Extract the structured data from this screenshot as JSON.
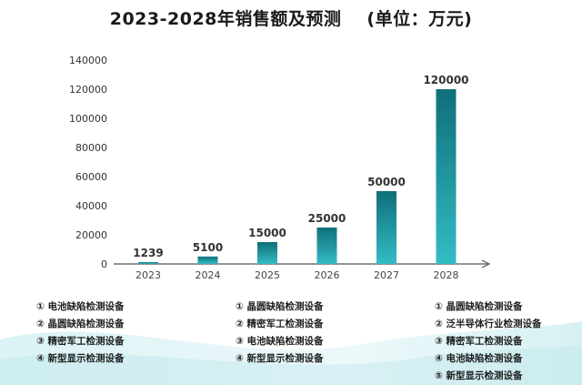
{
  "title": "2023-2028年销售额及预测",
  "unit_label": "(单位：万元)",
  "chart_data": {
    "type": "bar",
    "title": "2023-2028年销售额及预测",
    "categories": [
      "2023",
      "2024",
      "2025",
      "2026",
      "2027",
      "2028"
    ],
    "values": [
      1239,
      5100,
      15000,
      25000,
      50000,
      120000
    ],
    "ylim": [
      0,
      140000
    ],
    "yticks": [
      0,
      20000,
      40000,
      60000,
      80000,
      100000,
      120000,
      140000
    ],
    "xlabel": "",
    "ylabel": "",
    "grid": false,
    "colors": {
      "bar_top": "#0f6f7a",
      "bar_bottom": "#33bcc4",
      "axis": "#555555"
    }
  },
  "legend_columns": [
    [
      "① 电池缺陷检测设备",
      "② 晶圆缺陷检测设备",
      "③ 精密军工检测设备",
      "④ 新型显示检测设备"
    ],
    [
      "① 晶圆缺陷检测设备",
      "② 精密军工检测设备",
      "③ 电池缺陷检测设备",
      "④ 新型显示检测设备"
    ],
    [
      "① 晶圆缺陷检测设备",
      "② 泛半导体行业检测设备",
      "③ 精密军工检测设备",
      "④ 电池缺陷检测设备",
      "⑤ 新型显示检测设备"
    ]
  ]
}
